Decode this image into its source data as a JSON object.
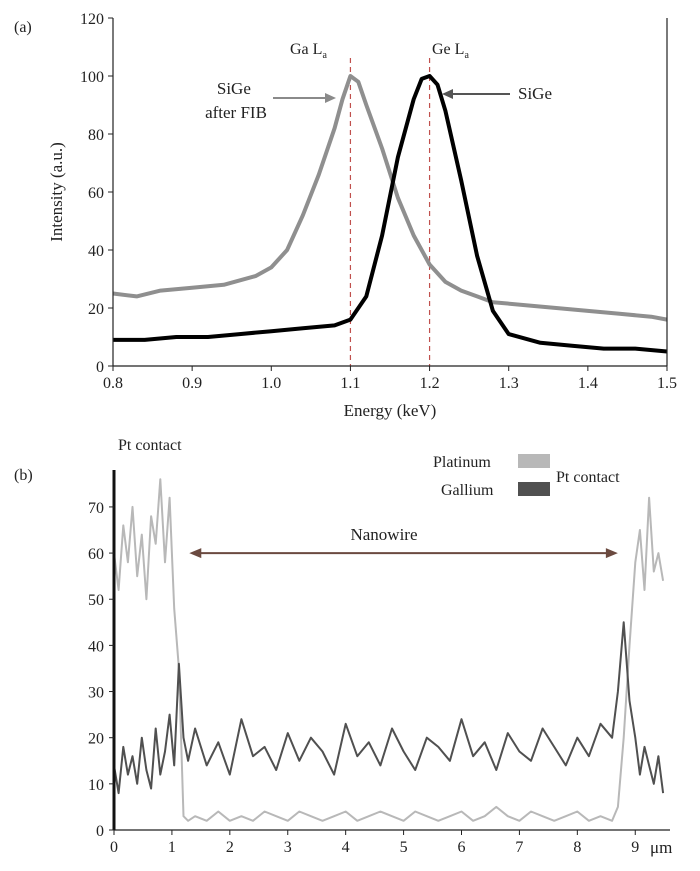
{
  "chart_data": [
    {
      "panel_label": "(a)",
      "type": "line",
      "xlabel": "Energy (keV)",
      "ylabel": "Intensity (a.u.)",
      "xlim": [
        0.8,
        1.5
      ],
      "ylim": [
        0,
        120
      ],
      "xticks": [
        "0.8",
        "0.9",
        "1.0",
        "1.1",
        "1.2",
        "1.3",
        "1.4",
        "1.5"
      ],
      "yticks": [
        "0",
        "20",
        "40",
        "60",
        "80",
        "100",
        "120"
      ],
      "series": [
        {
          "name": "SiGe after FIB",
          "color": "#8f8f8f",
          "x": [
            0.8,
            0.83,
            0.86,
            0.9,
            0.94,
            0.98,
            1.0,
            1.02,
            1.04,
            1.06,
            1.08,
            1.09,
            1.1,
            1.11,
            1.12,
            1.14,
            1.16,
            1.18,
            1.2,
            1.22,
            1.24,
            1.26,
            1.28,
            1.32,
            1.36,
            1.4,
            1.44,
            1.48,
            1.5
          ],
          "y": [
            25,
            24,
            26,
            27,
            28,
            31,
            34,
            40,
            52,
            66,
            82,
            92,
            100,
            98,
            90,
            75,
            58,
            45,
            35,
            29,
            26,
            24,
            22,
            21,
            20,
            19,
            18,
            17,
            16
          ]
        },
        {
          "name": "SiGe",
          "color": "#000000",
          "x": [
            0.8,
            0.84,
            0.88,
            0.92,
            0.96,
            1.0,
            1.04,
            1.08,
            1.1,
            1.12,
            1.14,
            1.16,
            1.18,
            1.19,
            1.2,
            1.21,
            1.22,
            1.24,
            1.26,
            1.28,
            1.3,
            1.34,
            1.38,
            1.42,
            1.46,
            1.5
          ],
          "y": [
            9,
            9,
            10,
            10,
            11,
            12,
            13,
            14,
            16,
            24,
            45,
            72,
            92,
            99,
            100,
            97,
            88,
            64,
            38,
            19,
            11,
            8,
            7,
            6,
            6,
            5
          ]
        }
      ],
      "reference_lines": [
        {
          "label": "Ga L",
          "subscript": "a",
          "x": 1.1
        },
        {
          "label": "Ge L",
          "subscript": "a",
          "x": 1.2
        }
      ],
      "annotations": [
        {
          "text_lines": [
            "SiGe",
            "after FIB"
          ],
          "points_to_series": "SiGe after FIB"
        },
        {
          "text_lines": [
            "SiGe"
          ],
          "points_to_series": "SiGe"
        }
      ]
    },
    {
      "panel_label": "(b)",
      "type": "line",
      "xlabel": "μm",
      "xlim": [
        0,
        9.6
      ],
      "ylim": [
        0,
        78
      ],
      "xticks": [
        "0",
        "1",
        "2",
        "3",
        "4",
        "5",
        "6",
        "7",
        "8",
        "9"
      ],
      "yticks": [
        "0",
        "10",
        "20",
        "30",
        "40",
        "50",
        "60",
        "70"
      ],
      "legend": [
        {
          "name": "Platinum",
          "color": "#b8b8b8"
        },
        {
          "name": "Gallium",
          "color": "#505050"
        }
      ],
      "legend_label": "Pt contact",
      "series": [
        {
          "name": "Platinum",
          "color": "#b8b8b8",
          "x": [
            0.0,
            0.08,
            0.16,
            0.24,
            0.32,
            0.4,
            0.48,
            0.56,
            0.64,
            0.72,
            0.8,
            0.88,
            0.96,
            1.04,
            1.12,
            1.2,
            1.28,
            1.4,
            1.6,
            1.8,
            2.0,
            2.2,
            2.4,
            2.6,
            2.8,
            3.0,
            3.2,
            3.4,
            3.6,
            3.8,
            4.0,
            4.2,
            4.4,
            4.6,
            4.8,
            5.0,
            5.2,
            5.4,
            5.6,
            5.8,
            6.0,
            6.2,
            6.4,
            6.6,
            6.8,
            7.0,
            7.2,
            7.4,
            7.6,
            7.8,
            8.0,
            8.2,
            8.4,
            8.6,
            8.7,
            8.8,
            8.9,
            9.0,
            9.08,
            9.16,
            9.24,
            9.32,
            9.4,
            9.48
          ],
          "y": [
            60,
            52,
            66,
            58,
            70,
            55,
            64,
            50,
            68,
            62,
            76,
            58,
            72,
            48,
            35,
            3,
            2,
            3,
            2,
            4,
            2,
            3,
            2,
            4,
            3,
            2,
            4,
            3,
            2,
            3,
            4,
            2,
            3,
            4,
            3,
            2,
            4,
            3,
            2,
            3,
            4,
            2,
            3,
            5,
            3,
            2,
            4,
            3,
            2,
            3,
            4,
            2,
            3,
            2,
            5,
            20,
            40,
            58,
            65,
            52,
            72,
            56,
            60,
            54
          ]
        },
        {
          "name": "Gallium",
          "color": "#505050",
          "x": [
            0.0,
            0.08,
            0.16,
            0.24,
            0.32,
            0.4,
            0.48,
            0.56,
            0.64,
            0.72,
            0.8,
            0.88,
            0.96,
            1.04,
            1.12,
            1.2,
            1.28,
            1.4,
            1.6,
            1.8,
            2.0,
            2.2,
            2.4,
            2.6,
            2.8,
            3.0,
            3.2,
            3.4,
            3.6,
            3.8,
            4.0,
            4.2,
            4.4,
            4.6,
            4.8,
            5.0,
            5.2,
            5.4,
            5.6,
            5.8,
            6.0,
            6.2,
            6.4,
            6.6,
            6.8,
            7.0,
            7.2,
            7.4,
            7.6,
            7.8,
            8.0,
            8.2,
            8.4,
            8.6,
            8.7,
            8.8,
            8.9,
            9.0,
            9.08,
            9.16,
            9.24,
            9.32,
            9.4,
            9.48
          ],
          "y": [
            14,
            8,
            18,
            12,
            16,
            10,
            20,
            13,
            9,
            22,
            12,
            17,
            25,
            14,
            36,
            20,
            15,
            22,
            14,
            19,
            12,
            24,
            16,
            18,
            13,
            21,
            15,
            20,
            17,
            12,
            23,
            16,
            19,
            14,
            22,
            17,
            13,
            20,
            18,
            15,
            24,
            16,
            19,
            13,
            21,
            17,
            15,
            22,
            18,
            14,
            20,
            16,
            23,
            20,
            30,
            45,
            28,
            20,
            12,
            18,
            14,
            10,
            16,
            8
          ]
        }
      ],
      "annotations": [
        {
          "text": "Pt contact",
          "position": "top-left"
        },
        {
          "text": "Nanowire",
          "arrow": "double",
          "x_range": [
            1.3,
            8.7
          ],
          "y": 60
        }
      ]
    }
  ]
}
